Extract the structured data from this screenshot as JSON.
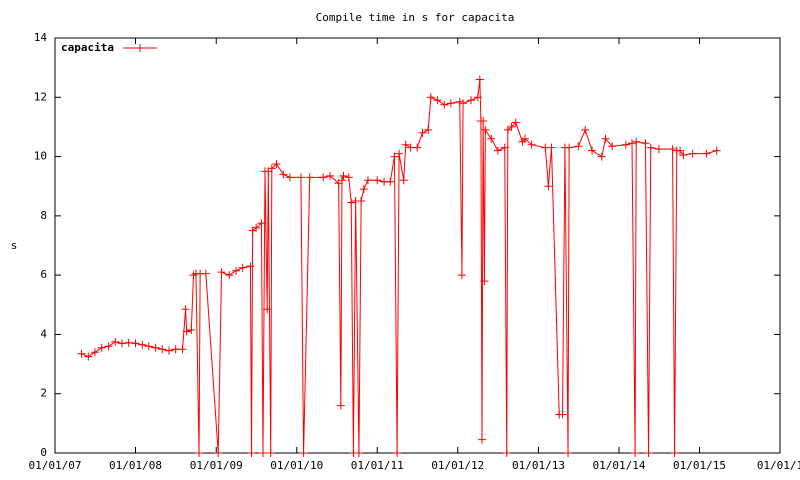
{
  "chart_data": {
    "type": "line",
    "title": "Compile time in s for capacita",
    "y_label": "s",
    "legend": "upper left",
    "grid": false,
    "marker": "+",
    "xlim": [
      "2007-01-01",
      "2016-01-01"
    ],
    "xticks": [
      {
        "value": "2007-01-01",
        "label": "01/01/07"
      },
      {
        "value": "2008-01-01",
        "label": "01/01/08"
      },
      {
        "value": "2009-01-01",
        "label": "01/01/09"
      },
      {
        "value": "2010-01-01",
        "label": "01/01/10"
      },
      {
        "value": "2011-01-01",
        "label": "01/01/11"
      },
      {
        "value": "2012-01-01",
        "label": "01/01/12"
      },
      {
        "value": "2013-01-01",
        "label": "01/01/13"
      },
      {
        "value": "2014-01-01",
        "label": "01/01/14"
      },
      {
        "value": "2015-01-01",
        "label": "01/01/15"
      },
      {
        "value": "2016-01-01",
        "label": "01/01/1"
      }
    ],
    "ylim": [
      0,
      14
    ],
    "yticks": [
      0,
      2,
      4,
      6,
      8,
      10,
      12,
      14
    ],
    "x": [
      "2007-05-01",
      "2007-06-01",
      "2007-07-01",
      "2007-08-01",
      "2007-09-01",
      "2007-10-01",
      "2007-11-01",
      "2007-12-01",
      "2008-01-01",
      "2008-02-01",
      "2008-03-01",
      "2008-04-01",
      "2008-05-01",
      "2008-06-01",
      "2008-07-01",
      "2008-08-01",
      "2008-08-15",
      "2008-08-20",
      "2008-09-10",
      "2008-09-20",
      "2008-10-01",
      "2008-10-15",
      "2008-10-20",
      "2008-11-15",
      "2009-01-10",
      "2009-01-25",
      "2009-03-01",
      "2009-04-01",
      "2009-05-01",
      "2009-06-05",
      "2009-06-10",
      "2009-06-15",
      "2009-07-01",
      "2009-07-25",
      "2009-08-01",
      "2009-08-10",
      "2009-08-20",
      "2009-08-25",
      "2009-09-05",
      "2009-09-10",
      "2009-10-01",
      "2009-11-01",
      "2009-12-01",
      "2010-01-20",
      "2010-02-01",
      "2010-03-01",
      "2010-05-01",
      "2010-06-01",
      "2010-07-10",
      "2010-07-20",
      "2010-07-25",
      "2010-08-01",
      "2010-08-25",
      "2010-09-05",
      "2010-09-15",
      "2010-09-25",
      "2010-10-10",
      "2010-10-20",
      "2010-11-01",
      "2010-11-20",
      "2011-01-01",
      "2011-02-01",
      "2011-03-01",
      "2011-03-20",
      "2011-04-01",
      "2011-04-10",
      "2011-05-01",
      "2011-05-10",
      "2011-06-01",
      "2011-07-01",
      "2011-07-25",
      "2011-08-20",
      "2011-09-01",
      "2011-10-01",
      "2011-11-01",
      "2011-12-01",
      "2012-01-10",
      "2012-01-20",
      "2012-01-25",
      "2012-03-01",
      "2012-04-01",
      "2012-04-10",
      "2012-04-15",
      "2012-04-20",
      "2012-04-25",
      "2012-05-01",
      "2012-05-05",
      "2012-06-01",
      "2012-07-01",
      "2012-08-01",
      "2012-08-10",
      "2012-08-15",
      "2012-09-01",
      "2012-09-20",
      "2012-10-20",
      "2012-11-01",
      "2012-12-01",
      "2013-02-01",
      "2013-02-15",
      "2013-03-01",
      "2013-04-05",
      "2013-04-20",
      "2013-05-01",
      "2013-05-15",
      "2013-05-20",
      "2013-07-01",
      "2013-08-01",
      "2013-09-01",
      "2013-10-15",
      "2013-11-01",
      "2013-12-01",
      "2014-02-01",
      "2014-03-01",
      "2014-03-15",
      "2014-03-20",
      "2014-05-01",
      "2014-05-15",
      "2014-05-25",
      "2014-07-01",
      "2014-09-01",
      "2014-09-10",
      "2014-09-20",
      "2014-10-05",
      "2014-10-20",
      "2014-12-01",
      "2015-02-01",
      "2015-03-20"
    ],
    "series": [
      {
        "name": "capacita",
        "color": "#ff0000",
        "values": [
          3.35,
          3.25,
          3.4,
          3.55,
          3.6,
          3.75,
          3.7,
          3.72,
          3.7,
          3.65,
          3.6,
          3.55,
          3.5,
          3.45,
          3.5,
          3.5,
          4.85,
          4.1,
          4.15,
          6.0,
          6.05,
          0,
          6.05,
          6.05,
          0,
          6.1,
          6.0,
          6.15,
          6.25,
          6.3,
          0,
          7.5,
          7.6,
          7.75,
          0,
          9.5,
          4.85,
          9.5,
          0,
          9.6,
          9.75,
          9.4,
          9.3,
          9.3,
          0,
          9.3,
          9.3,
          9.35,
          9.1,
          1.6,
          9.2,
          9.35,
          9.3,
          8.45,
          0,
          8.5,
          0,
          8.5,
          8.9,
          9.2,
          9.2,
          9.15,
          9.15,
          10.0,
          0,
          10.1,
          9.2,
          10.4,
          10.3,
          10.3,
          10.8,
          10.9,
          12.0,
          11.9,
          11.75,
          11.8,
          11.85,
          6.0,
          11.8,
          11.9,
          12.0,
          12.6,
          11.2,
          0.45,
          11.2,
          5.8,
          10.9,
          10.6,
          10.2,
          10.3,
          0,
          10.9,
          11.0,
          11.15,
          10.5,
          10.6,
          10.4,
          10.3,
          9.0,
          10.3,
          1.3,
          1.3,
          10.3,
          0,
          10.3,
          10.35,
          10.9,
          10.2,
          10.0,
          10.6,
          10.35,
          10.4,
          10.45,
          0,
          10.5,
          10.45,
          0,
          10.3,
          10.25,
          10.25,
          0,
          10.2,
          10.2,
          10.05,
          10.1,
          10.1,
          10.2
        ]
      }
    ]
  }
}
